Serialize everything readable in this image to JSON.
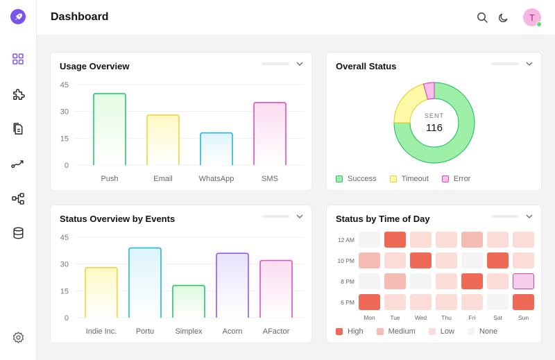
{
  "app": {
    "title": "Dashboard",
    "avatar_initial": "T"
  },
  "sidebar": {
    "items": [
      {
        "name": "grid-icon",
        "active": true
      },
      {
        "name": "puzzle-icon",
        "active": false
      },
      {
        "name": "documents-icon",
        "active": false
      },
      {
        "name": "route-icon",
        "active": false
      },
      {
        "name": "workflow-icon",
        "active": false
      },
      {
        "name": "database-icon",
        "active": false
      }
    ],
    "settings_icon": "gear-icon"
  },
  "header": {
    "icons": [
      "search-icon",
      "moon-icon"
    ]
  },
  "colors": {
    "accent": "#7b52ee",
    "green": "#2ec26b",
    "yellow": "#f2d33c",
    "cyan": "#23b8d6",
    "pink": "#e14ec0",
    "purple": "#8b5cf6",
    "heat_high": "#ee6a57",
    "heat_medium": "#f5bcb3",
    "heat_low": "#fbdcd7",
    "heat_none": "#f4f4f6"
  },
  "usage_overview": {
    "title": "Usage Overview",
    "chart_data": {
      "type": "bar",
      "title": "Usage Overview",
      "categories": [
        "Push",
        "Email",
        "WhatsApp",
        "SMS"
      ],
      "values": [
        40,
        28,
        18,
        35
      ],
      "yticks": [
        0,
        15,
        30,
        45
      ],
      "ylim": [
        0,
        45
      ],
      "grid": true
    }
  },
  "overall_status": {
    "title": "Overall Status",
    "center_label": "SENT",
    "center_value": "116",
    "chart_data": {
      "type": "pie",
      "title": "Overall Status",
      "categories": [
        "Success",
        "Timeout",
        "Error"
      ],
      "values": [
        87,
        24,
        5
      ],
      "total": 116,
      "legend": "bottom"
    },
    "legend": [
      {
        "label": "Success",
        "color": "#9ef0a8",
        "border": "#2ec26b"
      },
      {
        "label": "Timeout",
        "color": "#fdf9a6",
        "border": "#e8d23b"
      },
      {
        "label": "Error",
        "color": "#f7c0ec",
        "border": "#d64fc0"
      }
    ]
  },
  "status_by_events": {
    "title": "Status Overview by Events",
    "chart_data": {
      "type": "bar",
      "title": "Status Overview by Events",
      "categories": [
        "Indie Inc.",
        "Portu",
        "Simplex",
        "Acorn",
        "AFactor"
      ],
      "values": [
        28,
        39,
        18,
        36,
        32
      ],
      "yticks": [
        0,
        15,
        30,
        45
      ],
      "ylim": [
        0,
        45
      ],
      "grid": true
    }
  },
  "status_by_time": {
    "title": "Status by Time of Day",
    "chart_data": {
      "type": "heatmap",
      "title": "Status by Time of Day",
      "rows": [
        "12 AM",
        "10 PM",
        "8 PM",
        "6 PM"
      ],
      "columns": [
        "Mon",
        "Tue",
        "Wed",
        "Thu",
        "Fri",
        "Sat",
        "Sun"
      ],
      "levels": [
        "High",
        "Medium",
        "Low",
        "None"
      ],
      "values": [
        [
          "None",
          "High",
          "Low",
          "Low",
          "Medium",
          "Low",
          "Low"
        ],
        [
          "Medium",
          "Low",
          "High",
          "Low",
          "None",
          "High",
          "Low"
        ],
        [
          "None",
          "Medium",
          "None",
          "Low",
          "High",
          "Low",
          "Selected"
        ],
        [
          "High",
          "Low",
          "Low",
          "Low",
          "Low",
          "None",
          "High"
        ]
      ]
    },
    "legend": [
      {
        "label": "High",
        "color": "#ee6a57"
      },
      {
        "label": "Medium",
        "color": "#f5bcb3"
      },
      {
        "label": "Low",
        "color": "#fbdcd7"
      },
      {
        "label": "None",
        "color": "#f4f4f6"
      }
    ]
  }
}
